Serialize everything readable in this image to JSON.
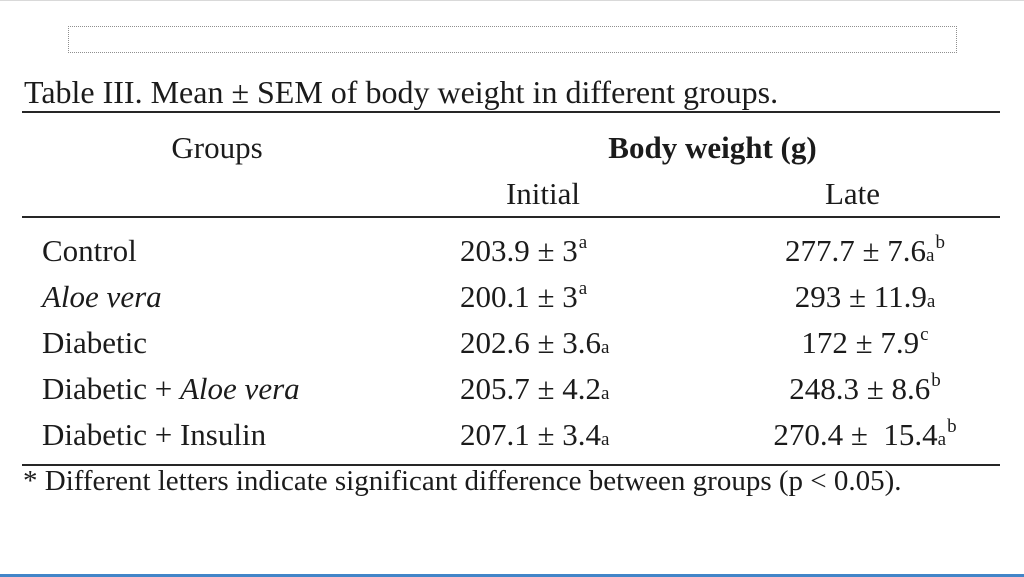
{
  "page": {
    "title": "Table III. Mean ± SEM of body weight in different groups.",
    "footnote": "* Different letters indicate significant difference between groups (p < 0.05)."
  },
  "table": {
    "group_header": "Groups",
    "span_header": "Body weight (g)",
    "sub_headers": [
      "Initial",
      "Late"
    ],
    "rows": [
      {
        "group": [
          {
            "text": "Control",
            "italic": false
          }
        ],
        "initial": {
          "value": "203.9 ± 3",
          "markers": [
            {
              "text": "a",
              "style": "sup"
            }
          ]
        },
        "late": {
          "value": "277.7 ± 7.6",
          "markers": [
            {
              "text": "a",
              "style": "small"
            },
            {
              "text": "b",
              "style": "sup"
            }
          ]
        }
      },
      {
        "group": [
          {
            "text": "Aloe vera",
            "italic": true
          }
        ],
        "initial": {
          "value": "200.1 ± 3",
          "markers": [
            {
              "text": "a",
              "style": "sup"
            }
          ]
        },
        "late": {
          "value": "293 ± 11.9",
          "markers": [
            {
              "text": "a",
              "style": "small"
            }
          ]
        }
      },
      {
        "group": [
          {
            "text": "Diabetic",
            "italic": false
          }
        ],
        "initial": {
          "value": "202.6 ± 3.6",
          "markers": [
            {
              "text": "a",
              "style": "small"
            }
          ]
        },
        "late": {
          "value": "172 ± 7.9",
          "markers": [
            {
              "text": "c",
              "style": "sup"
            }
          ]
        }
      },
      {
        "group": [
          {
            "text": "Diabetic + ",
            "italic": false
          },
          {
            "text": "Aloe vera",
            "italic": true
          }
        ],
        "initial": {
          "value": "205.7 ± 4.2",
          "markers": [
            {
              "text": "a",
              "style": "small"
            }
          ]
        },
        "late": {
          "value": "248.3 ± 8.6",
          "markers": [
            {
              "text": "b",
              "style": "sup"
            }
          ]
        }
      },
      {
        "group": [
          {
            "text": "Diabetic + Insulin",
            "italic": false
          }
        ],
        "initial": {
          "value": "207.1 ± 3.4",
          "markers": [
            {
              "text": "a",
              "style": "small"
            }
          ]
        },
        "late": {
          "value": "270.4 ±  15.4",
          "markers": [
            {
              "text": "a",
              "style": "small"
            },
            {
              "text": "b",
              "style": "sup"
            }
          ]
        }
      }
    ]
  },
  "colors": {
    "text": "#1b1b1b",
    "rule": "#262626",
    "dotted_border": "#8f8f8f",
    "top_edge": "#d9d9d9",
    "bottom_edge": "#4285c8"
  }
}
